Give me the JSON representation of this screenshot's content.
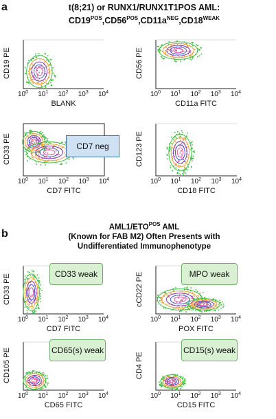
{
  "panel_a": {
    "letter": "a",
    "title_line1": "t(8;21) or RUNX1/RUNX1T1POS AML:",
    "title_line2": [
      {
        "t": "CD19",
        "s": "POS"
      },
      {
        "t": ",CD56",
        "s": "POS"
      },
      {
        "t": ",CD11a",
        "s": "NEG"
      },
      {
        "t": ",CD18",
        "s": "WEAK"
      }
    ]
  },
  "panel_b": {
    "letter": "b",
    "title_line1_pre": "AML1/ETO",
    "title_line1_sup": "POS",
    "title_line1_post": " AML",
    "title_line2": "(Known for FAB M2) Often Presents with",
    "title_line3": "Undifferentiated Immunophenotype"
  },
  "tick_labels": [
    "10",
    "10",
    "10",
    "10",
    "10"
  ],
  "tick_exponents": [
    "0",
    "1",
    "2",
    "3",
    "4"
  ],
  "plots": [
    {
      "id": "p1",
      "ylabel": "CD19 PE",
      "xlabel": "BLANK"
    },
    {
      "id": "p2",
      "ylabel": "CD56 PE",
      "xlabel": "CD11a FITC"
    },
    {
      "id": "p3",
      "ylabel": "CD33 PE",
      "xlabel": "CD7 FITC",
      "callout": "CD7 neg"
    },
    {
      "id": "p4",
      "ylabel": "CD123 PE",
      "xlabel": "CD18 FITC"
    },
    {
      "id": "p5",
      "ylabel": "CD33 PE",
      "xlabel": "CD7 FITC",
      "callout": "CD33 weak"
    },
    {
      "id": "p6",
      "ylabel": "cCD22 PE",
      "xlabel": "POX FITC",
      "callout": "MPO weak"
    },
    {
      "id": "p7",
      "ylabel": "CD105 PE",
      "xlabel": "CD65 FITC",
      "callout": "CD65(s) weak"
    },
    {
      "id": "p8",
      "ylabel": "CD4 PE",
      "xlabel": "CD15 FITC",
      "callout": "CD15(s) weak"
    }
  ],
  "colors": {
    "green": "#3fbf3f",
    "orange": "#e8a040",
    "purple": "#7a3fb0",
    "blue": "#3f5fd0",
    "pink": "#e060a0"
  }
}
